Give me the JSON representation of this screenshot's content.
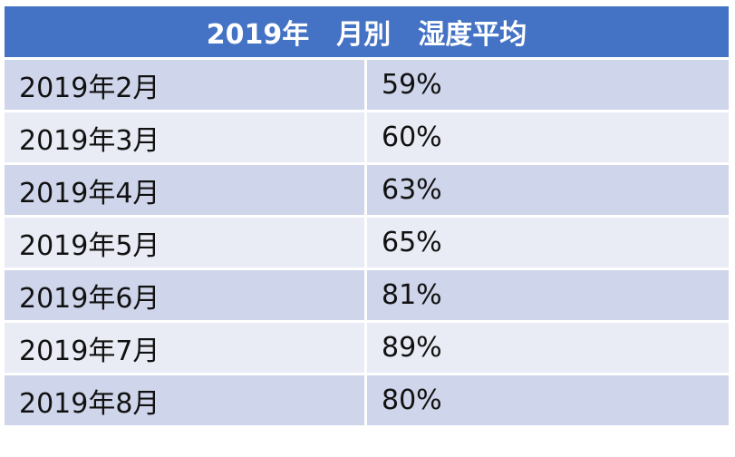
{
  "table": {
    "title": "2019年　月別　湿度平均",
    "rows": [
      [
        "2019年2月",
        "59%"
      ],
      [
        "2019年3月",
        "60%"
      ],
      [
        "2019年4月",
        "63%"
      ],
      [
        "2019年5月",
        "65%"
      ],
      [
        "2019年6月",
        "81%"
      ],
      [
        "2019年7月",
        "89%"
      ],
      [
        "2019年8月",
        "80%"
      ]
    ]
  }
}
